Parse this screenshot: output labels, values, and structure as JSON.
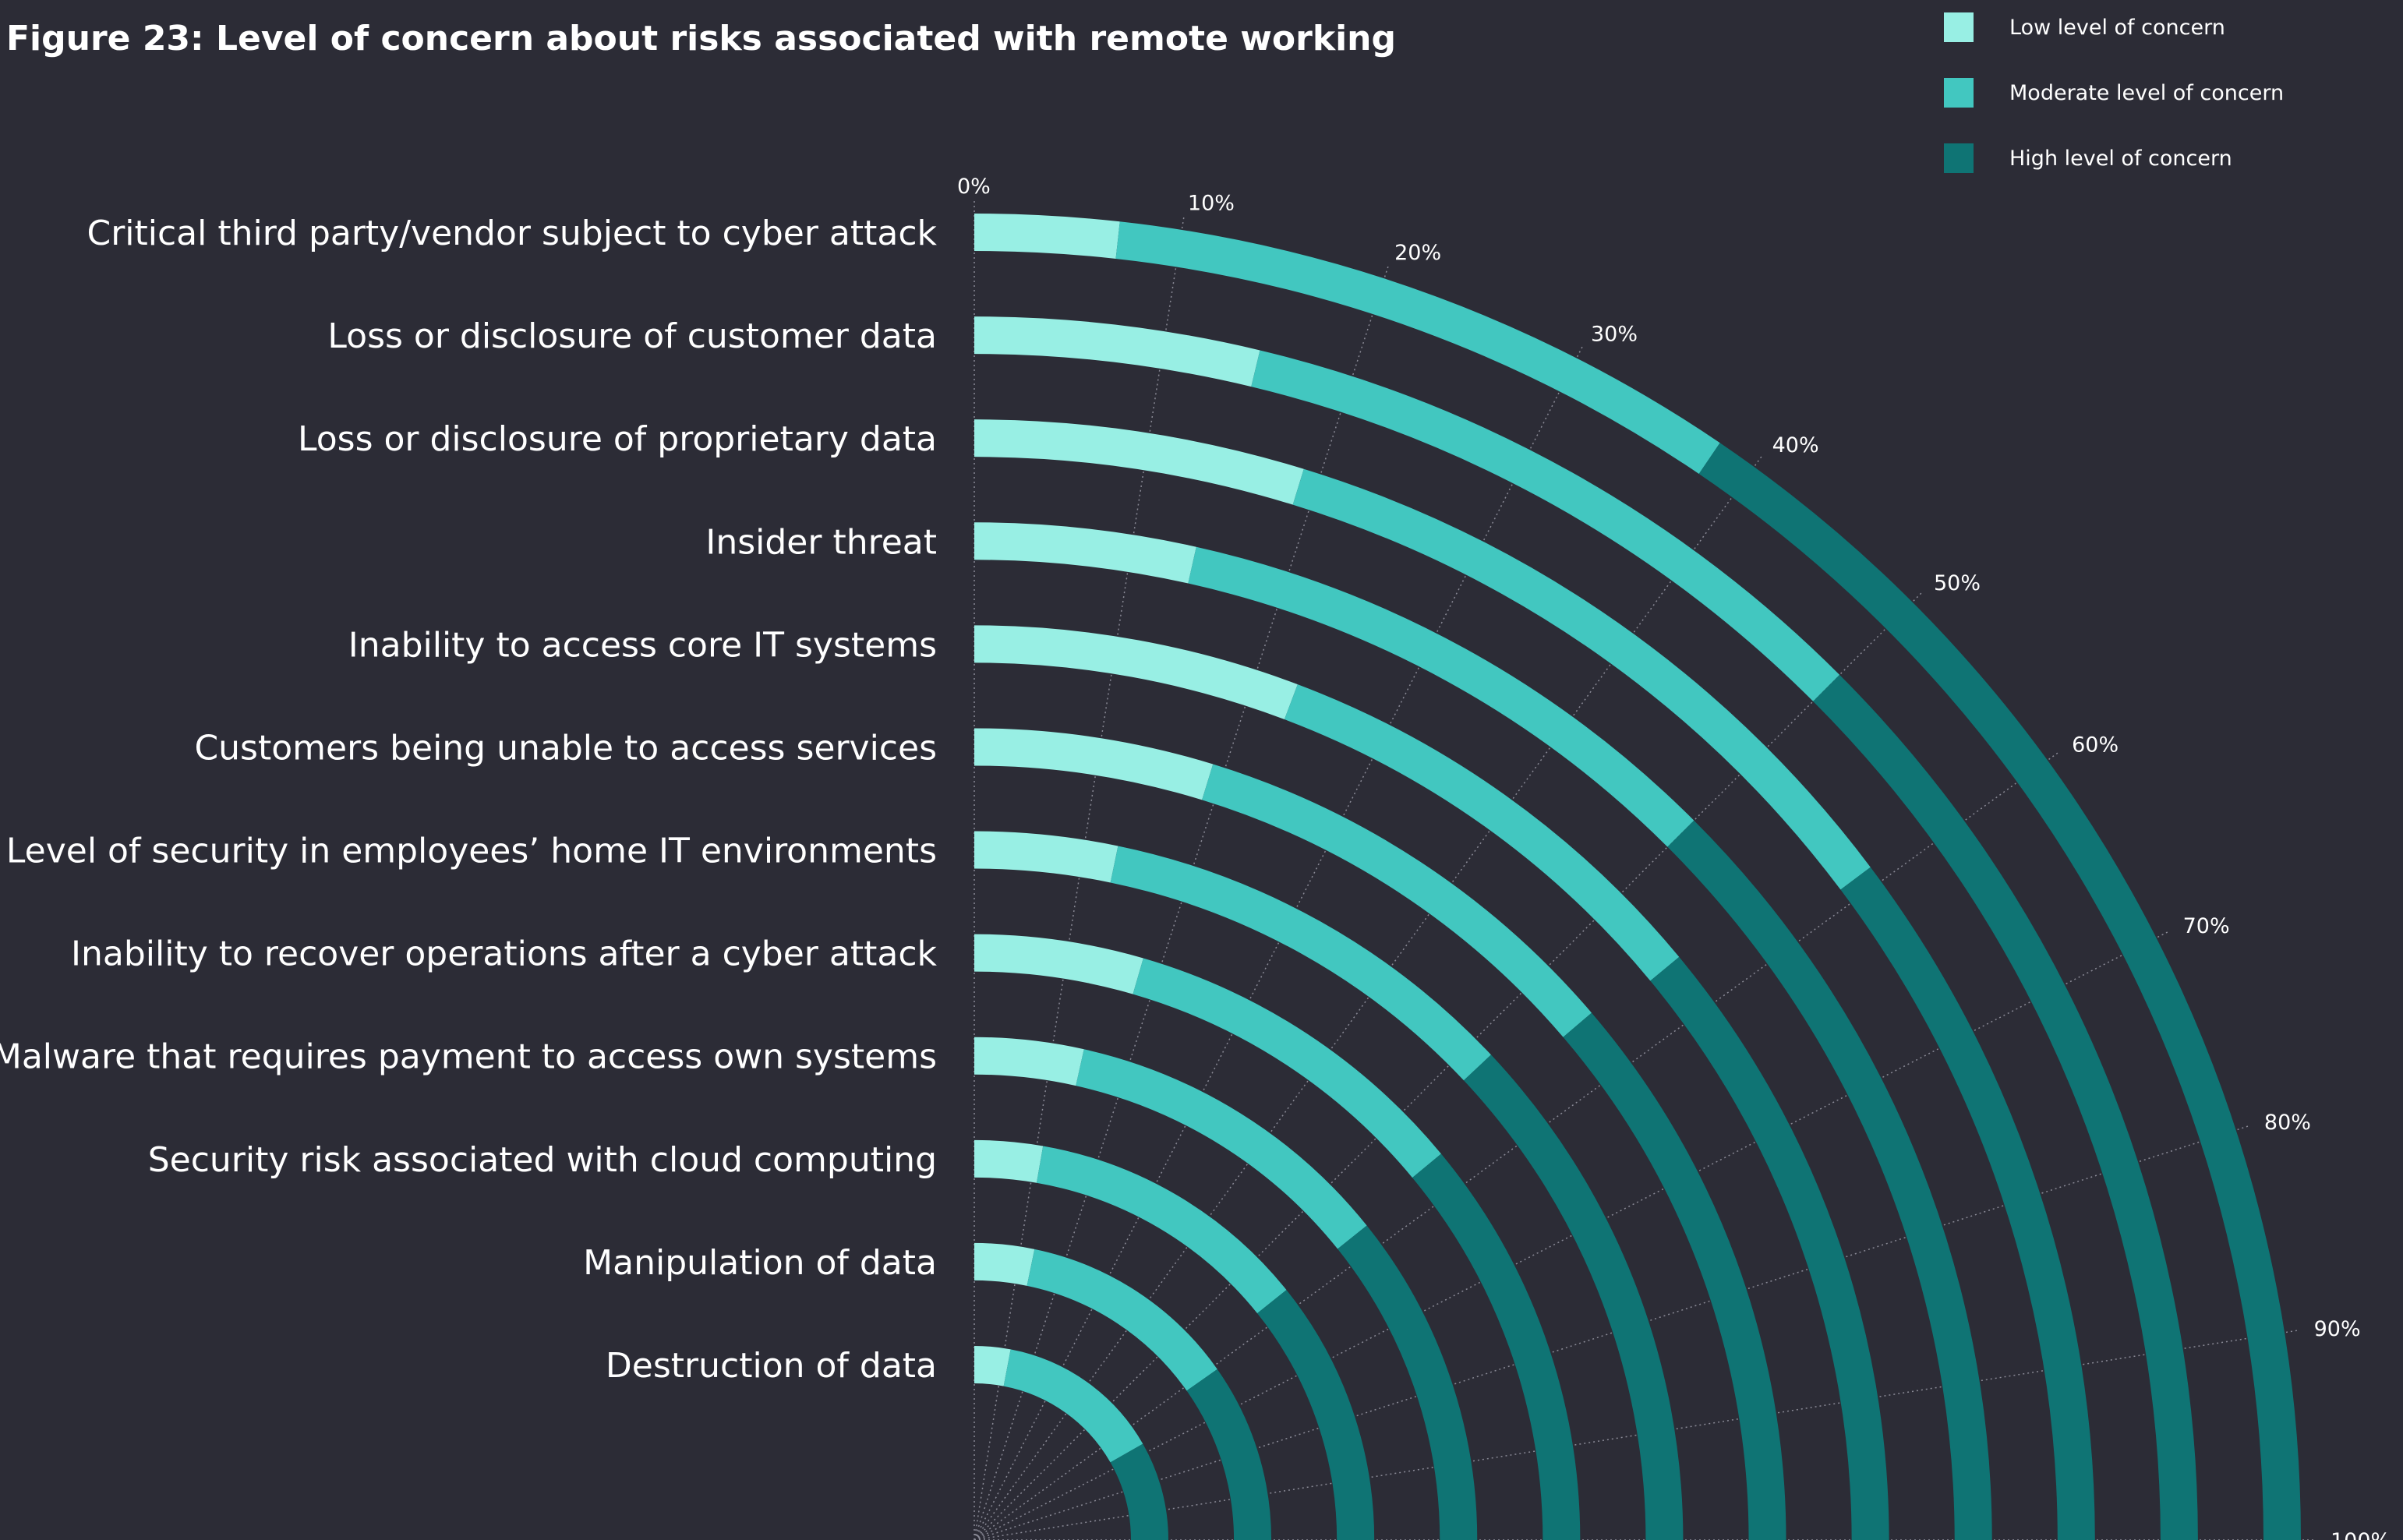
{
  "title": "Figure 23: Level of concern about risks associated with remote working",
  "legend": [
    {
      "label": "Low level of concern",
      "color": "#98efe4"
    },
    {
      "label": "Moderate level of concern",
      "color": "#42c7c0"
    },
    {
      "label": "High level of concern",
      "color": "#0f7474"
    }
  ],
  "chart_data": {
    "type": "radial-stacked-bar",
    "title": "Figure 23: Level of concern about risks associated with remote working",
    "angular_ticks": [
      "0%",
      "10%",
      "20%",
      "30%",
      "40%",
      "50%",
      "60%",
      "70%",
      "80%",
      "90%",
      "100%"
    ],
    "range": [
      0,
      100
    ],
    "unit": "%",
    "grid": true,
    "legend_position": "top-right",
    "series": [
      {
        "name": "Low level of concern",
        "color": "#98efe4"
      },
      {
        "name": "Moderate level of concern",
        "color": "#42c7c0"
      },
      {
        "name": "High level of concern",
        "color": "#0f7474"
      }
    ],
    "categories": [
      "Critical third party/vendor subject to cyber attack",
      "Loss or disclosure of customer data",
      "Loss or disclosure of proprietary data",
      "Insider threat",
      "Inability to access core IT systems",
      "Customers being unable to access services",
      "Level of security in employees’ home IT environments",
      "Inability to recover operations after a cyber attack",
      "Malware that requires payment to access own systems",
      "Security risk associated with cloud computing",
      "Manipulation of data",
      "Destruction of data"
    ],
    "values": [
      [
        7,
        31,
        62
      ],
      [
        15,
        35,
        50
      ],
      [
        19,
        40,
        41
      ],
      [
        14,
        36,
        50
      ],
      [
        23,
        33,
        44
      ],
      [
        19,
        36,
        45
      ],
      [
        13,
        39,
        48
      ],
      [
        18,
        38,
        44
      ],
      [
        14,
        43,
        43
      ],
      [
        11,
        46,
        43
      ],
      [
        13,
        48,
        39
      ],
      [
        12,
        55,
        33
      ]
    ]
  }
}
